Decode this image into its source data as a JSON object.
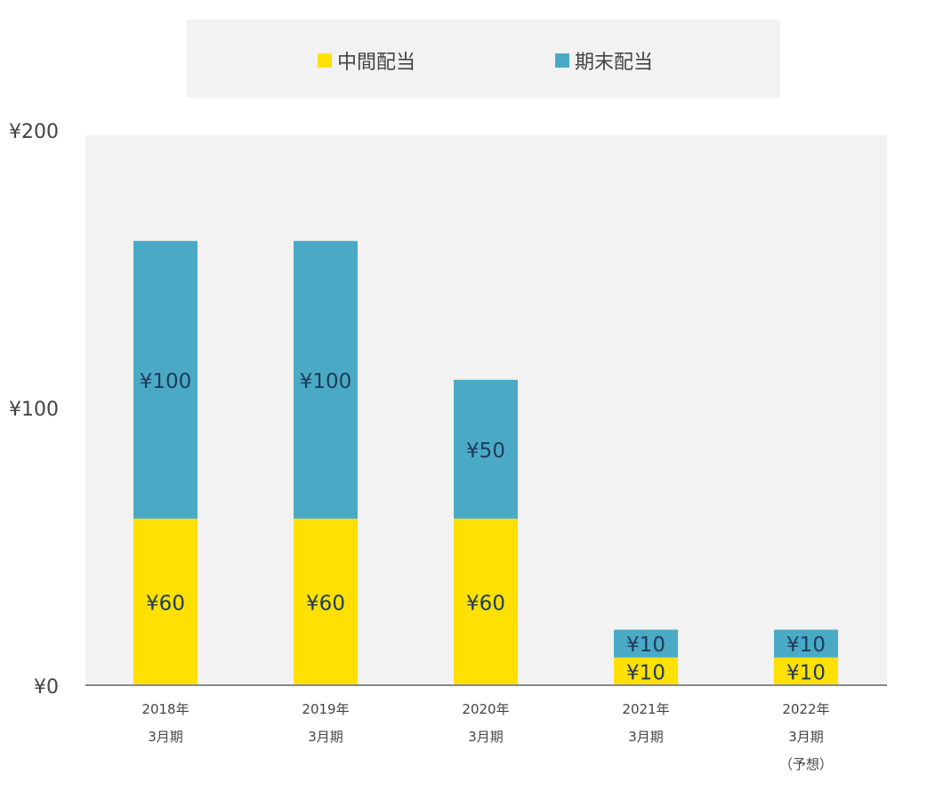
{
  "chart_data": {
    "type": "bar",
    "stacked": true,
    "categories": [
      [
        "2018年",
        "3月期"
      ],
      [
        "2019年",
        "3月期"
      ],
      [
        "2020年",
        "3月期"
      ],
      [
        "2021年",
        "3月期"
      ],
      [
        "2022年",
        "3月期",
        "（予想）"
      ]
    ],
    "series": [
      {
        "name": "中間配当",
        "values": [
          60,
          60,
          60,
          10,
          10
        ],
        "color": "#ffe000",
        "labels": [
          "¥60",
          "¥60",
          "¥60",
          "¥10",
          "¥10"
        ]
      },
      {
        "name": "期末配当",
        "values": [
          100,
          100,
          50,
          10,
          10
        ],
        "color": "#4aaac6",
        "labels": [
          "¥100",
          "¥100",
          "¥50",
          "¥10",
          "¥10"
        ]
      }
    ],
    "ylim": [
      0,
      200
    ],
    "yticks": [
      0,
      100,
      200
    ],
    "ytick_labels": [
      "¥0",
      "¥100",
      "¥200"
    ],
    "legend_position": "top",
    "grid": false,
    "plot_background": "#f2f2f2",
    "label_color": "#1f3b57"
  }
}
